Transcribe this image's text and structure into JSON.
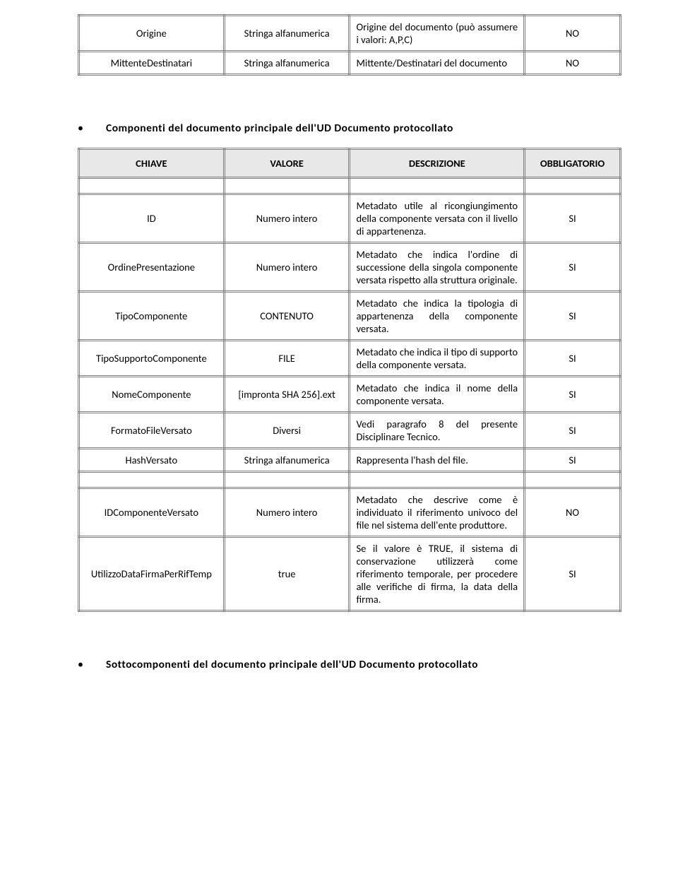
{
  "table1": {
    "rows": [
      {
        "key": "Origine",
        "val": "Stringa alfanumerica",
        "desc": "Origine del documento (può assumere i valori: A,P,C)",
        "req": "NO"
      },
      {
        "key": "MittenteDestinatari",
        "val": "Stringa alfanumerica",
        "desc": "Mittente/Destinatari del documento",
        "req": "NO"
      }
    ]
  },
  "section2_title": "Componenti del documento principale dell'UD Documento protocollato",
  "table2": {
    "headers": {
      "key": "CHIAVE",
      "val": "VALORE",
      "desc": "DESCRIZIONE",
      "req": "OBBLIGATORIO"
    },
    "groups": [
      {
        "rows": [
          {
            "key": "ID",
            "val": "Numero intero",
            "desc": "Metadato utile al ricongiungimento della componente versata con il livello di appartenenza.",
            "req": "SI"
          },
          {
            "key": "OrdinePresentazione",
            "val": "Numero intero",
            "desc": "Metadato che indica l'ordine di successione della singola componente versata rispetto alla struttura originale.",
            "req": "SI"
          },
          {
            "key": "TipoComponente",
            "val": "CONTENUTO",
            "desc": "Metadato che indica la tipologia di appartenenza della componente versata.",
            "req": "SI"
          },
          {
            "key": "TipoSupportoComponente",
            "val": "FILE",
            "desc": "Metadato che indica il tipo di supporto della componente versata.",
            "req": "SI"
          },
          {
            "key": "NomeComponente",
            "val": "[impronta SHA 256].ext",
            "desc": "Metadato che indica il nome della componente versata.",
            "req": "SI"
          },
          {
            "key": "FormatoFileVersato",
            "val": "Diversi",
            "desc": "Vedi paragrafo 8 del presente Disciplinare Tecnico.",
            "req": "SI"
          },
          {
            "key": "HashVersato",
            "val": "Stringa alfanumerica",
            "desc": "Rappresenta l'hash del file.",
            "req": "SI"
          }
        ]
      },
      {
        "rows": [
          {
            "key": "IDComponenteVersato",
            "val": "Numero intero",
            "desc": "Metadato che descrive come è individuato il riferimento univoco del file nel sistema dell'ente produttore.",
            "req": "NO"
          },
          {
            "key": "UtilizzoDataFirmaPerRifTemp",
            "val": "true",
            "desc": "Se il valore è TRUE, il sistema di conservazione utilizzerà come riferimento temporale, per procedere alle verifiche di firma, la data della firma.",
            "req": "SI"
          }
        ]
      }
    ]
  },
  "section3_title": "Sottocomponenti del documento principale dell'UD Documento protocollato"
}
